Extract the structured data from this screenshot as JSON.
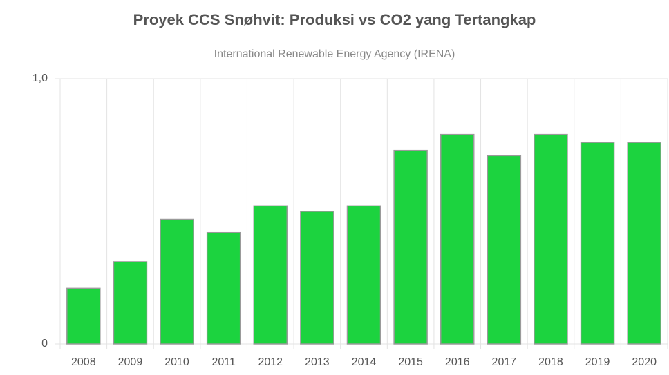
{
  "chart_data": {
    "type": "bar",
    "title": "Proyek CCS Snøhvit: Produksi vs CO2 yang Tertangkap",
    "subtitle": "International Renewable Energy Agency (IRENA)",
    "categories": [
      "2008",
      "2009",
      "2010",
      "2011",
      "2012",
      "2013",
      "2014",
      "2015",
      "2016",
      "2017",
      "2018",
      "2019",
      "2020"
    ],
    "values": [
      0.21,
      0.31,
      0.47,
      0.42,
      0.52,
      0.5,
      0.52,
      0.73,
      0.79,
      0.71,
      0.79,
      0.76,
      0.76
    ],
    "color": "#1cd33f",
    "ylim": [
      0,
      1
    ],
    "yticks": [
      0,
      {
        "value": 1,
        "label": "1,0"
      }
    ],
    "grid": true
  }
}
